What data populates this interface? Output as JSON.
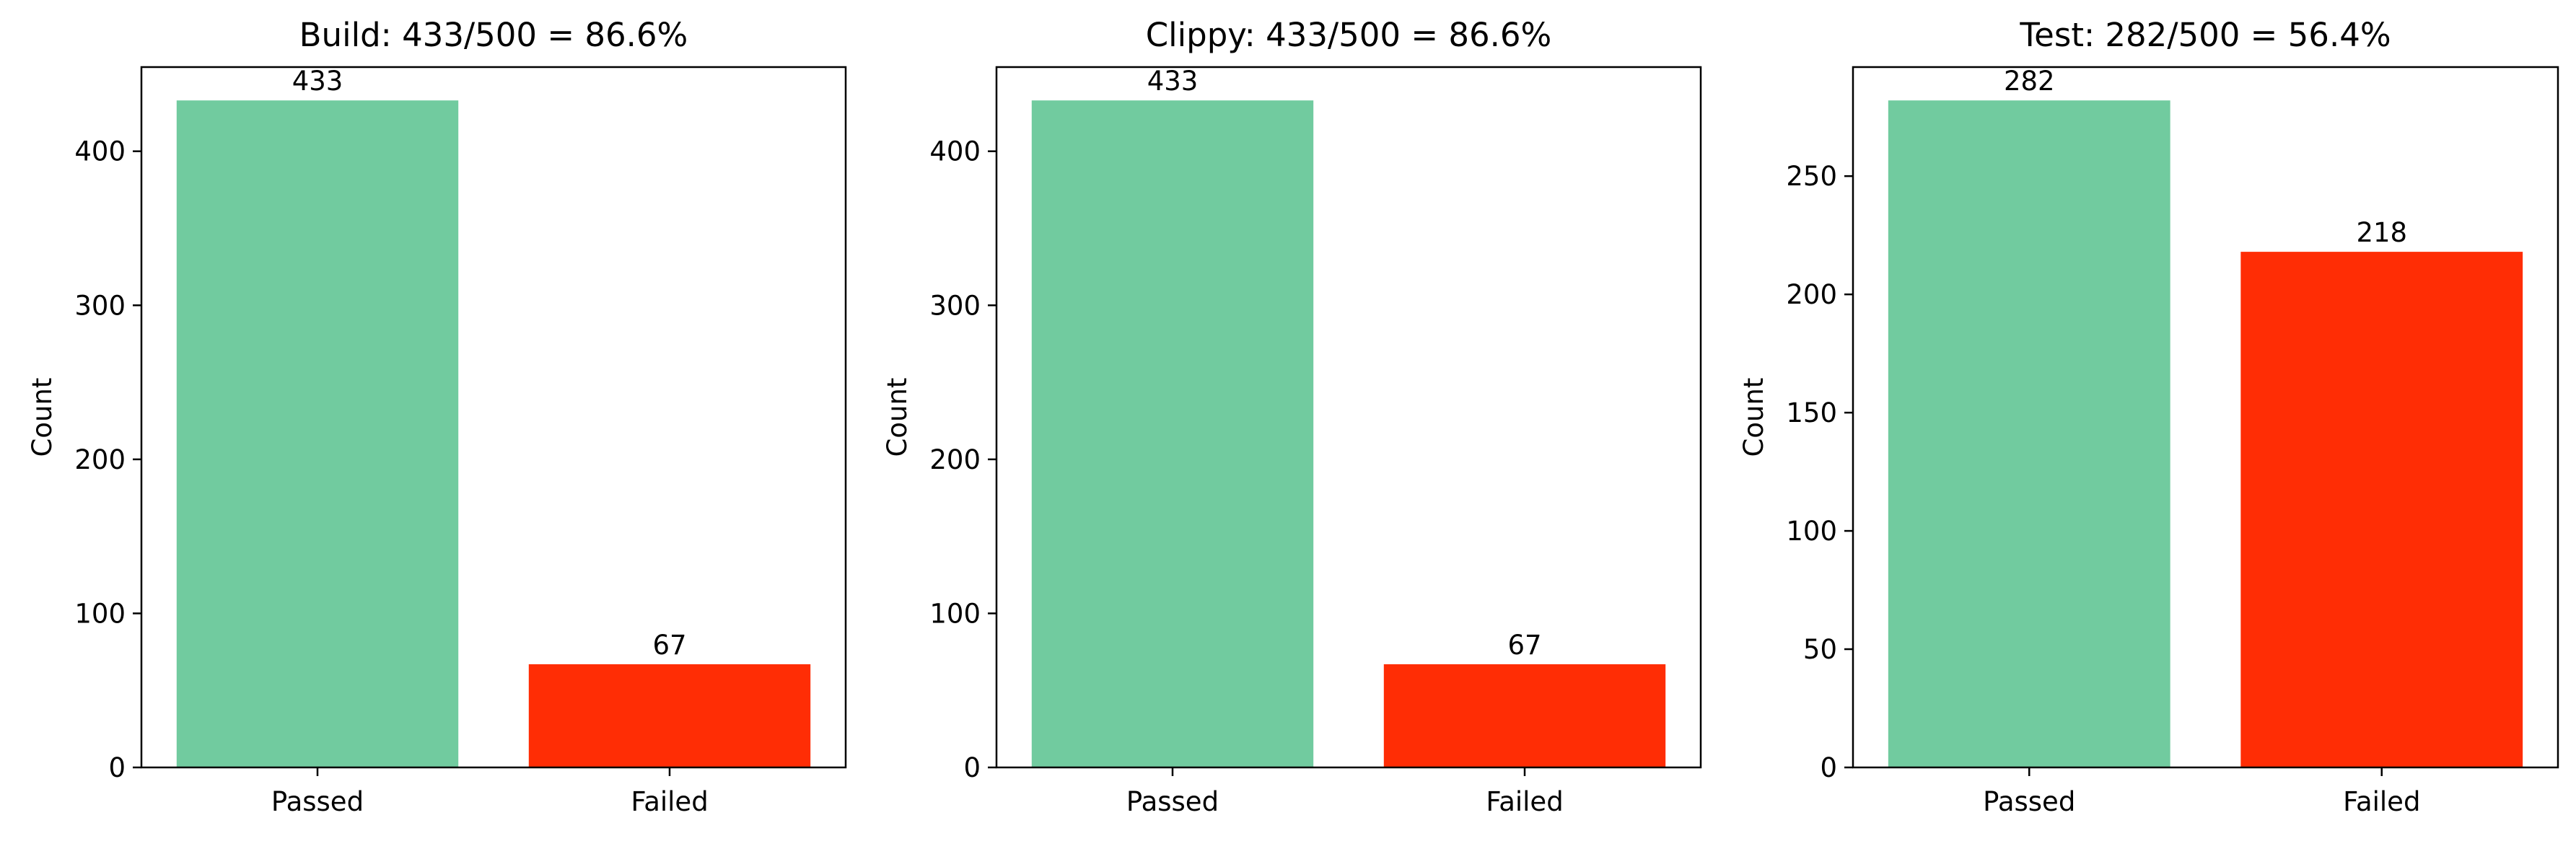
{
  "colors": {
    "passed": "#71cb9f",
    "failed": "#ff2d05",
    "axis": "#000000",
    "background": "#ffffff"
  },
  "chart_data": [
    {
      "type": "bar",
      "title": "Build: 433/500 = 86.6%",
      "xlabel": "",
      "ylabel": "Count",
      "categories": [
        "Passed",
        "Failed"
      ],
      "values": [
        433,
        67
      ],
      "data_labels": [
        "433",
        "67"
      ],
      "yticks": [
        0,
        100,
        200,
        300,
        400
      ],
      "ylim": [
        0,
        454.65
      ],
      "grid": false,
      "legend": "none"
    },
    {
      "type": "bar",
      "title": "Clippy: 433/500 = 86.6%",
      "xlabel": "",
      "ylabel": "Count",
      "categories": [
        "Passed",
        "Failed"
      ],
      "values": [
        433,
        67
      ],
      "data_labels": [
        "433",
        "67"
      ],
      "yticks": [
        0,
        100,
        200,
        300,
        400
      ],
      "ylim": [
        0,
        454.65
      ],
      "grid": false,
      "legend": "none"
    },
    {
      "type": "bar",
      "title": "Test: 282/500 = 56.4%",
      "xlabel": "",
      "ylabel": "Count",
      "categories": [
        "Passed",
        "Failed"
      ],
      "values": [
        282,
        218
      ],
      "data_labels": [
        "282",
        "218"
      ],
      "yticks": [
        0,
        50,
        100,
        150,
        200,
        250
      ],
      "ylim": [
        0,
        296.1
      ],
      "grid": false,
      "legend": "none"
    }
  ]
}
